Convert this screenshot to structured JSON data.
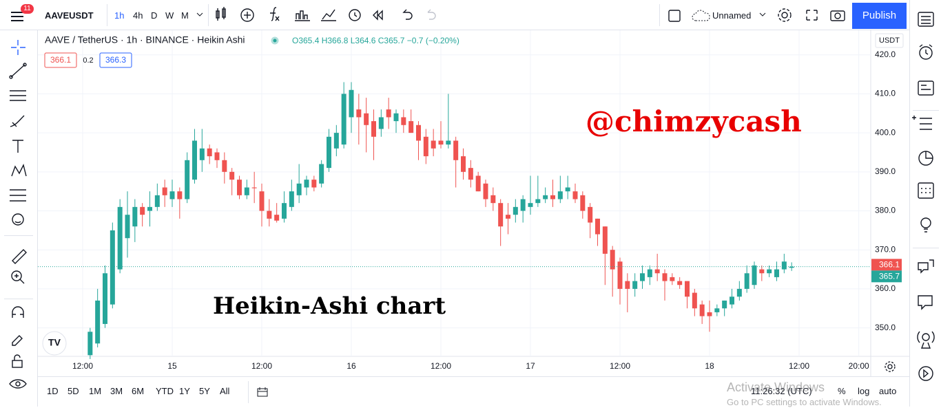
{
  "toolbar": {
    "badge": "11",
    "symbol": "AAVEUSDT",
    "intervals": [
      "1h",
      "4h",
      "D",
      "W",
      "M"
    ],
    "layout_name": "Unnamed",
    "publish": "Publish"
  },
  "chart_data": {
    "type": "candlestick",
    "title": "AAVE / TetherUS · 1h · BINANCE · Heikin Ashi",
    "ohlc_legend": "O365.4 H366.8 L364.6 C365.7 −0.7 (−0.20%)",
    "quote": {
      "bid": "366.1",
      "spread": "0.2",
      "ask": "366.3"
    },
    "currency": "USDT",
    "annotations": [
      "@chimzycash",
      "Heikin-Ashi chart"
    ],
    "up_color": "#26a69a",
    "down_color": "#ef5350",
    "bid_price": 366.1,
    "last_price": 365.7,
    "x": [
      13,
      14,
      15,
      16,
      17,
      18,
      19,
      20,
      21,
      22,
      23,
      24,
      25,
      26,
      27,
      28,
      29,
      30,
      31,
      32,
      33,
      34,
      35,
      36,
      37,
      38,
      39,
      40,
      41,
      42,
      43,
      44,
      45,
      46,
      47,
      48,
      49,
      50,
      51,
      52,
      53,
      54,
      55,
      56,
      57,
      58,
      59,
      60,
      61,
      62,
      63,
      64,
      65,
      66,
      67,
      68,
      69,
      70,
      71,
      72,
      73,
      74,
      75,
      76,
      77,
      78,
      79,
      80,
      81,
      82,
      83,
      84,
      85,
      86,
      87,
      88,
      89,
      90,
      91,
      92,
      93,
      94,
      95,
      96,
      97,
      98,
      99,
      100,
      101,
      102,
      103,
      104,
      105,
      106,
      107
    ],
    "open": [
      343,
      346,
      351,
      356,
      365,
      373,
      376,
      381,
      380,
      381,
      386,
      383,
      385,
      383,
      388,
      393,
      396,
      395,
      393,
      390,
      388,
      384,
      386,
      385,
      380,
      379,
      378,
      381,
      384,
      386,
      388,
      387,
      391,
      396,
      397,
      404,
      406,
      405,
      403,
      401,
      406,
      403,
      404,
      403,
      402,
      399,
      398,
      398,
      397,
      398,
      394,
      391,
      389,
      387,
      384,
      382,
      379,
      379,
      380,
      381,
      382,
      383,
      384,
      383,
      385,
      385,
      384,
      381,
      378,
      376,
      370,
      367,
      362,
      360,
      362,
      363,
      365,
      364,
      363,
      362,
      362,
      359,
      356,
      354,
      354,
      355,
      356,
      358,
      360,
      361,
      365,
      364,
      363,
      365,
      365.4
    ],
    "high": [
      350,
      360,
      366,
      377,
      383,
      385,
      383,
      382,
      385,
      387,
      388,
      388,
      386,
      395,
      401,
      401,
      397,
      396,
      395,
      391,
      389,
      388,
      390,
      387,
      383,
      382,
      385,
      388,
      392,
      389,
      389,
      393,
      401,
      402,
      413,
      413,
      410,
      409,
      406,
      406,
      409,
      406,
      406,
      406,
      403,
      401,
      401,
      403,
      410,
      399,
      396,
      393,
      390,
      388,
      386,
      383,
      382,
      383,
      384,
      389,
      389,
      386,
      388,
      389,
      389,
      387,
      385,
      382,
      378,
      376,
      371,
      368,
      364,
      364,
      366,
      366,
      369,
      365,
      364,
      363,
      362,
      360,
      357,
      357,
      356,
      357,
      360,
      362,
      366,
      367,
      366,
      366,
      367,
      369,
      366.8
    ],
    "low": [
      342,
      345,
      350,
      355,
      364,
      368,
      372,
      376,
      376,
      380,
      381,
      381,
      378,
      382,
      387,
      390,
      392,
      391,
      387,
      384,
      383,
      383,
      382,
      376,
      376,
      377,
      377,
      380,
      382,
      384,
      385,
      386,
      390,
      394,
      396,
      400,
      397,
      395,
      393,
      399,
      401,
      400,
      400,
      400,
      393,
      392,
      394,
      396,
      396,
      386,
      388,
      386,
      385,
      381,
      380,
      371,
      374,
      377,
      377,
      379,
      381,
      382,
      381,
      382,
      383,
      382,
      378,
      373,
      371,
      361,
      358,
      356,
      354,
      358,
      360,
      361,
      362,
      357,
      361,
      360,
      355,
      353,
      351,
      349,
      353,
      353,
      355,
      357,
      359,
      360,
      362,
      363,
      362,
      364,
      364.6
    ],
    "close": [
      349,
      357,
      364,
      375,
      381,
      379,
      381,
      379,
      381,
      384,
      384,
      385,
      383,
      393,
      398,
      396,
      394,
      393,
      390,
      388,
      384,
      386,
      385.8,
      380,
      378,
      377.5,
      382,
      385,
      387,
      388,
      386,
      392,
      399,
      400,
      410,
      411,
      404,
      402,
      399,
      404,
      404,
      405,
      402,
      400,
      398,
      394,
      396,
      397,
      398,
      393,
      390,
      388,
      385,
      383,
      382,
      376,
      378,
      381,
      383,
      382,
      383,
      384,
      383,
      385,
      386,
      383,
      380,
      377,
      374,
      369,
      365,
      360,
      360,
      362,
      364,
      365,
      364,
      362,
      362,
      361,
      358,
      355,
      353,
      353,
      355,
      357,
      358,
      360,
      364,
      366,
      364,
      365,
      365,
      367,
      365.7
    ],
    "xlim": [
      6,
      117.6
    ],
    "xticks": [
      {
        "value": 12,
        "label": "12:00"
      },
      {
        "value": 24,
        "label": "15"
      },
      {
        "value": 36,
        "label": "12:00"
      },
      {
        "value": 48,
        "label": "16"
      },
      {
        "value": 60,
        "label": "12:00"
      },
      {
        "value": 72,
        "label": "17"
      },
      {
        "value": 84,
        "label": "12:00"
      },
      {
        "value": 96,
        "label": "18"
      },
      {
        "value": 108,
        "label": "12:00"
      },
      {
        "value": 116,
        "label": "20:00"
      }
    ],
    "ylim": [
      342.7,
      426.3
    ],
    "yticks": [
      {
        "value": 350,
        "label": "350.0"
      },
      {
        "value": 360,
        "label": "360.0"
      },
      {
        "value": 370,
        "label": "370.0"
      },
      {
        "value": 380,
        "label": "380.0"
      },
      {
        "value": 390,
        "label": "390.0"
      },
      {
        "value": 400,
        "label": "400.0"
      },
      {
        "value": 410,
        "label": "410.0"
      },
      {
        "value": 420,
        "label": "420.0"
      }
    ],
    "grid": true
  },
  "bottom_bar": {
    "ranges": [
      "1D",
      "5D",
      "1M",
      "3M",
      "6M",
      "YTD",
      "1Y",
      "5Y",
      "All"
    ],
    "clock": "11:26:32 (UTC)",
    "scale_options": [
      "%",
      "log",
      "auto"
    ]
  },
  "watermark": {
    "title": "Activate Windows",
    "subtitle": "Go to PC settings to activate Windows."
  }
}
